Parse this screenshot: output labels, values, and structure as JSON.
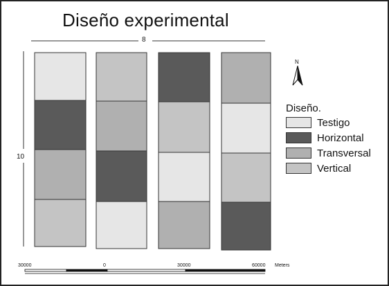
{
  "title": "Diseño experimental",
  "dimensions": {
    "top": "8",
    "left": "10"
  },
  "north_label": "N",
  "legend": {
    "title": "Diseño.",
    "items": [
      {
        "key": "testigo",
        "label": "Testigo",
        "color": "#e6e6e6"
      },
      {
        "key": "horizontal",
        "label": "Horizontal",
        "color": "#5a5a5a"
      },
      {
        "key": "transversal",
        "label": "Transversal",
        "color": "#b0b0b0"
      },
      {
        "key": "vertical",
        "label": "Vertical",
        "color": "#c4c4c4"
      }
    ]
  },
  "plots": [
    [
      "testigo",
      "horizontal",
      "transversal",
      "vertical"
    ],
    [
      "vertical",
      "transversal",
      "horizontal",
      "testigo"
    ],
    [
      "horizontal",
      "vertical",
      "testigo",
      "transversal"
    ],
    [
      "transversal",
      "testigo",
      "vertical",
      "horizontal"
    ]
  ],
  "scale_bar": {
    "labels": [
      "30000",
      "0",
      "30000",
      "60000"
    ],
    "unit": "Meters"
  }
}
